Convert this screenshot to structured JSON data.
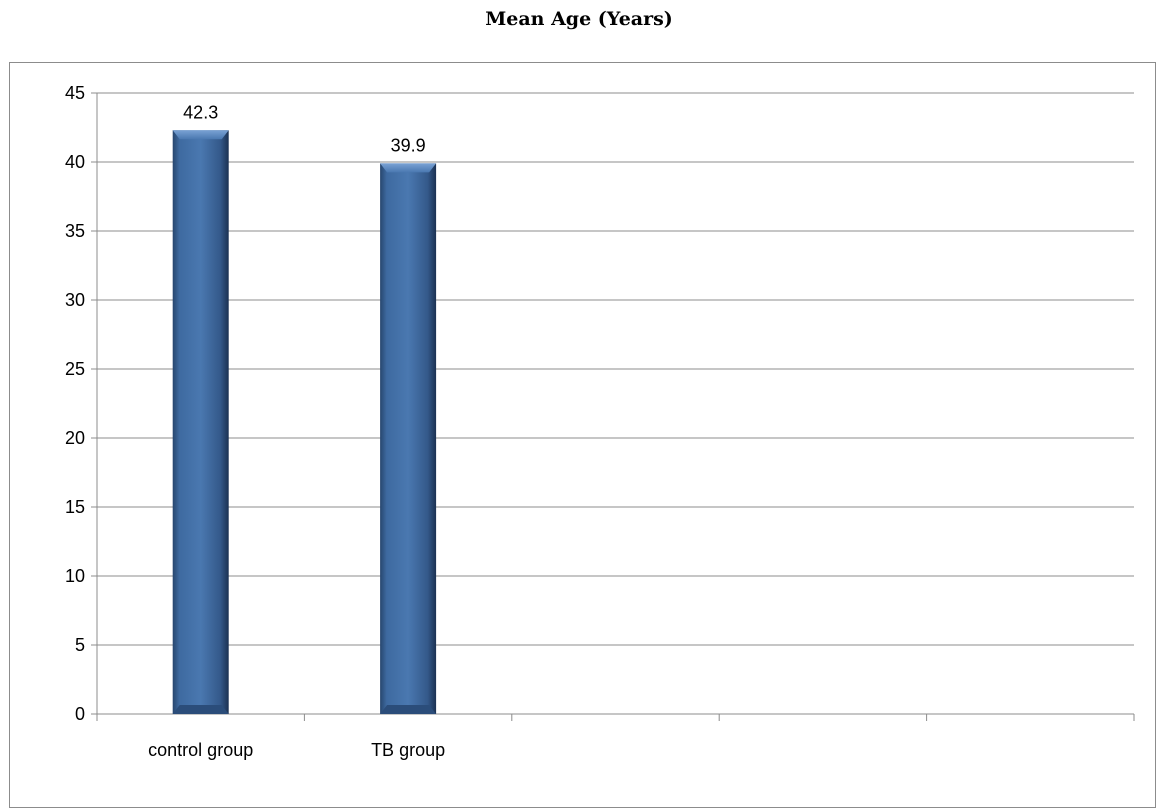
{
  "chart_data": {
    "type": "bar",
    "title": "Mean Age (Years)",
    "categories": [
      "control group",
      "TB group",
      "",
      "",
      ""
    ],
    "values": [
      42.3,
      39.9,
      null,
      null,
      null
    ],
    "data_labels": [
      "42.3",
      "39.9",
      "",
      "",
      ""
    ],
    "ylim": [
      0,
      45
    ],
    "yticks": [
      "0",
      "5",
      "10",
      "15",
      "20",
      "25",
      "30",
      "35",
      "40",
      "45"
    ],
    "xlabel": "",
    "ylabel": "",
    "grid": true,
    "legend": "none",
    "bar_color": "#3e6aa0",
    "grid_color": "#8c8c8c"
  }
}
